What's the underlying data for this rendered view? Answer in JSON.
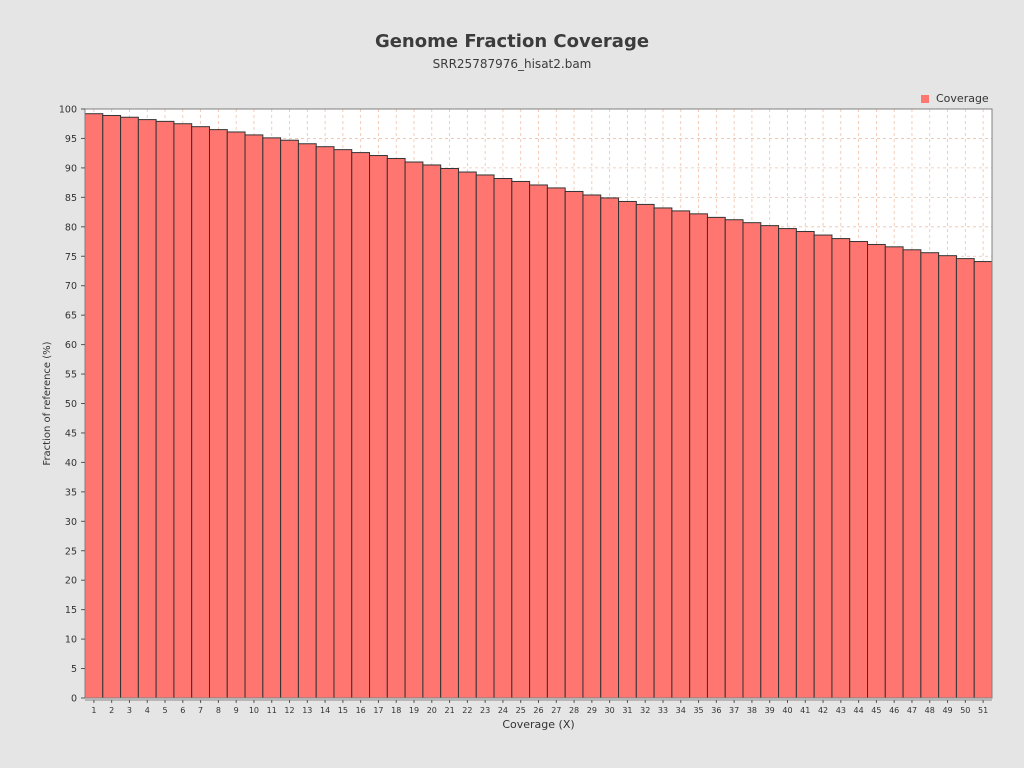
{
  "chart_data": {
    "type": "bar",
    "title": "Genome Fraction Coverage",
    "subtitle": "SRR25787976_hisat2.bam",
    "xlabel": "Coverage (X)",
    "ylabel": "Fraction of reference (%)",
    "ylim": [
      0,
      100
    ],
    "ytick_step": 5,
    "grid": true,
    "legend_position": "top-right",
    "series": [
      {
        "name": "Coverage",
        "color": "#ff7570",
        "values": [
          99.2,
          98.9,
          98.6,
          98.2,
          97.9,
          97.5,
          97.0,
          96.5,
          96.1,
          95.6,
          95.1,
          94.7,
          94.1,
          93.6,
          93.1,
          92.6,
          92.1,
          91.6,
          91.0,
          90.5,
          89.9,
          89.3,
          88.8,
          88.2,
          87.7,
          87.1,
          86.6,
          86.0,
          85.4,
          84.9,
          84.3,
          83.8,
          83.2,
          82.7,
          82.2,
          81.6,
          81.2,
          80.7,
          80.2,
          79.7,
          79.2,
          78.6,
          78.0,
          77.5,
          77.0,
          76.6,
          76.1,
          75.6,
          75.1,
          74.6,
          74.1
        ]
      }
    ],
    "categories": [
      "1",
      "2",
      "3",
      "4",
      "5",
      "6",
      "7",
      "8",
      "9",
      "10",
      "11",
      "12",
      "13",
      "14",
      "15",
      "16",
      "17",
      "18",
      "19",
      "20",
      "21",
      "22",
      "23",
      "24",
      "25",
      "26",
      "27",
      "28",
      "29",
      "30",
      "31",
      "32",
      "33",
      "34",
      "35",
      "36",
      "37",
      "38",
      "39",
      "40",
      "41",
      "42",
      "43",
      "44",
      "45",
      "46",
      "47",
      "48",
      "49",
      "50",
      "51"
    ]
  }
}
